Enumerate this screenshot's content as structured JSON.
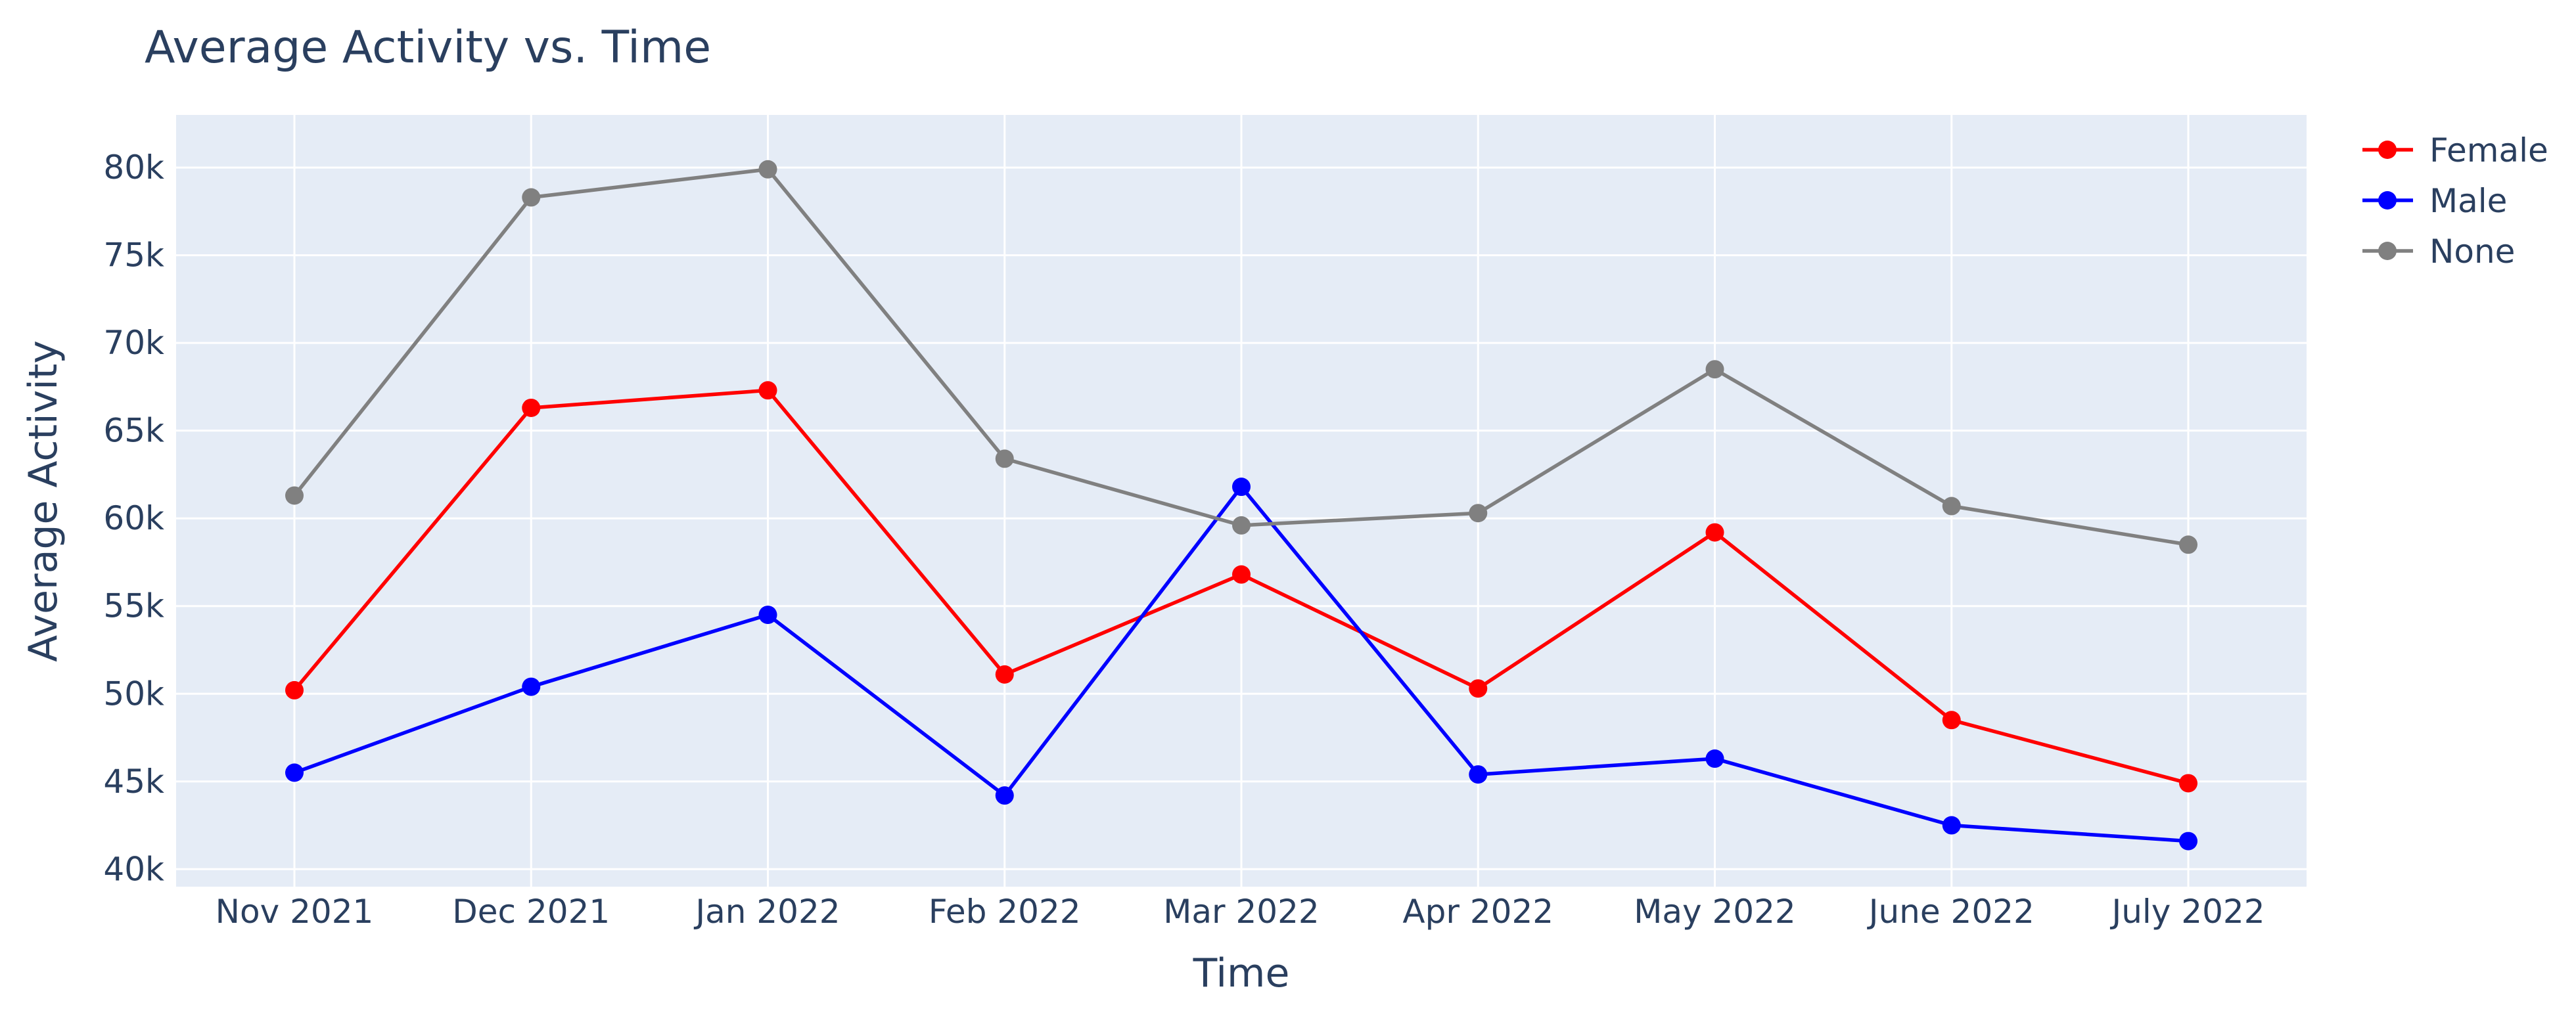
{
  "chart_data": {
    "type": "line",
    "title": "Average Activity vs. Time",
    "xlabel": "Time",
    "ylabel": "Average Activity",
    "categories": [
      "Nov 2021",
      "Dec 2021",
      "Jan 2022",
      "Feb 2022",
      "Mar 2022",
      "Apr 2022",
      "May 2022",
      "June 2022",
      "July 2022"
    ],
    "ylim": [
      39000,
      83000
    ],
    "yticks": [
      40000,
      45000,
      50000,
      55000,
      60000,
      65000,
      70000,
      75000,
      80000
    ],
    "ytick_labels": [
      "40k",
      "45k",
      "50k",
      "55k",
      "60k",
      "65k",
      "70k",
      "75k",
      "80k"
    ],
    "grid": true,
    "legend_position": "top-right",
    "series": [
      {
        "name": "Female",
        "color": "#ff0000",
        "values": [
          50200,
          66300,
          67300,
          51100,
          56800,
          50300,
          59200,
          48500,
          44900
        ]
      },
      {
        "name": "Male",
        "color": "#0000ff",
        "values": [
          45500,
          50400,
          54500,
          44200,
          61800,
          45400,
          46300,
          42500,
          41600
        ]
      },
      {
        "name": "None",
        "color": "#808080",
        "values": [
          61300,
          78300,
          79900,
          63400,
          59600,
          60300,
          68500,
          60700,
          58500
        ]
      }
    ]
  },
  "colors": {
    "plot_background": "#e5ecf6",
    "grid": "#ffffff",
    "text": "#2a3f5f"
  }
}
